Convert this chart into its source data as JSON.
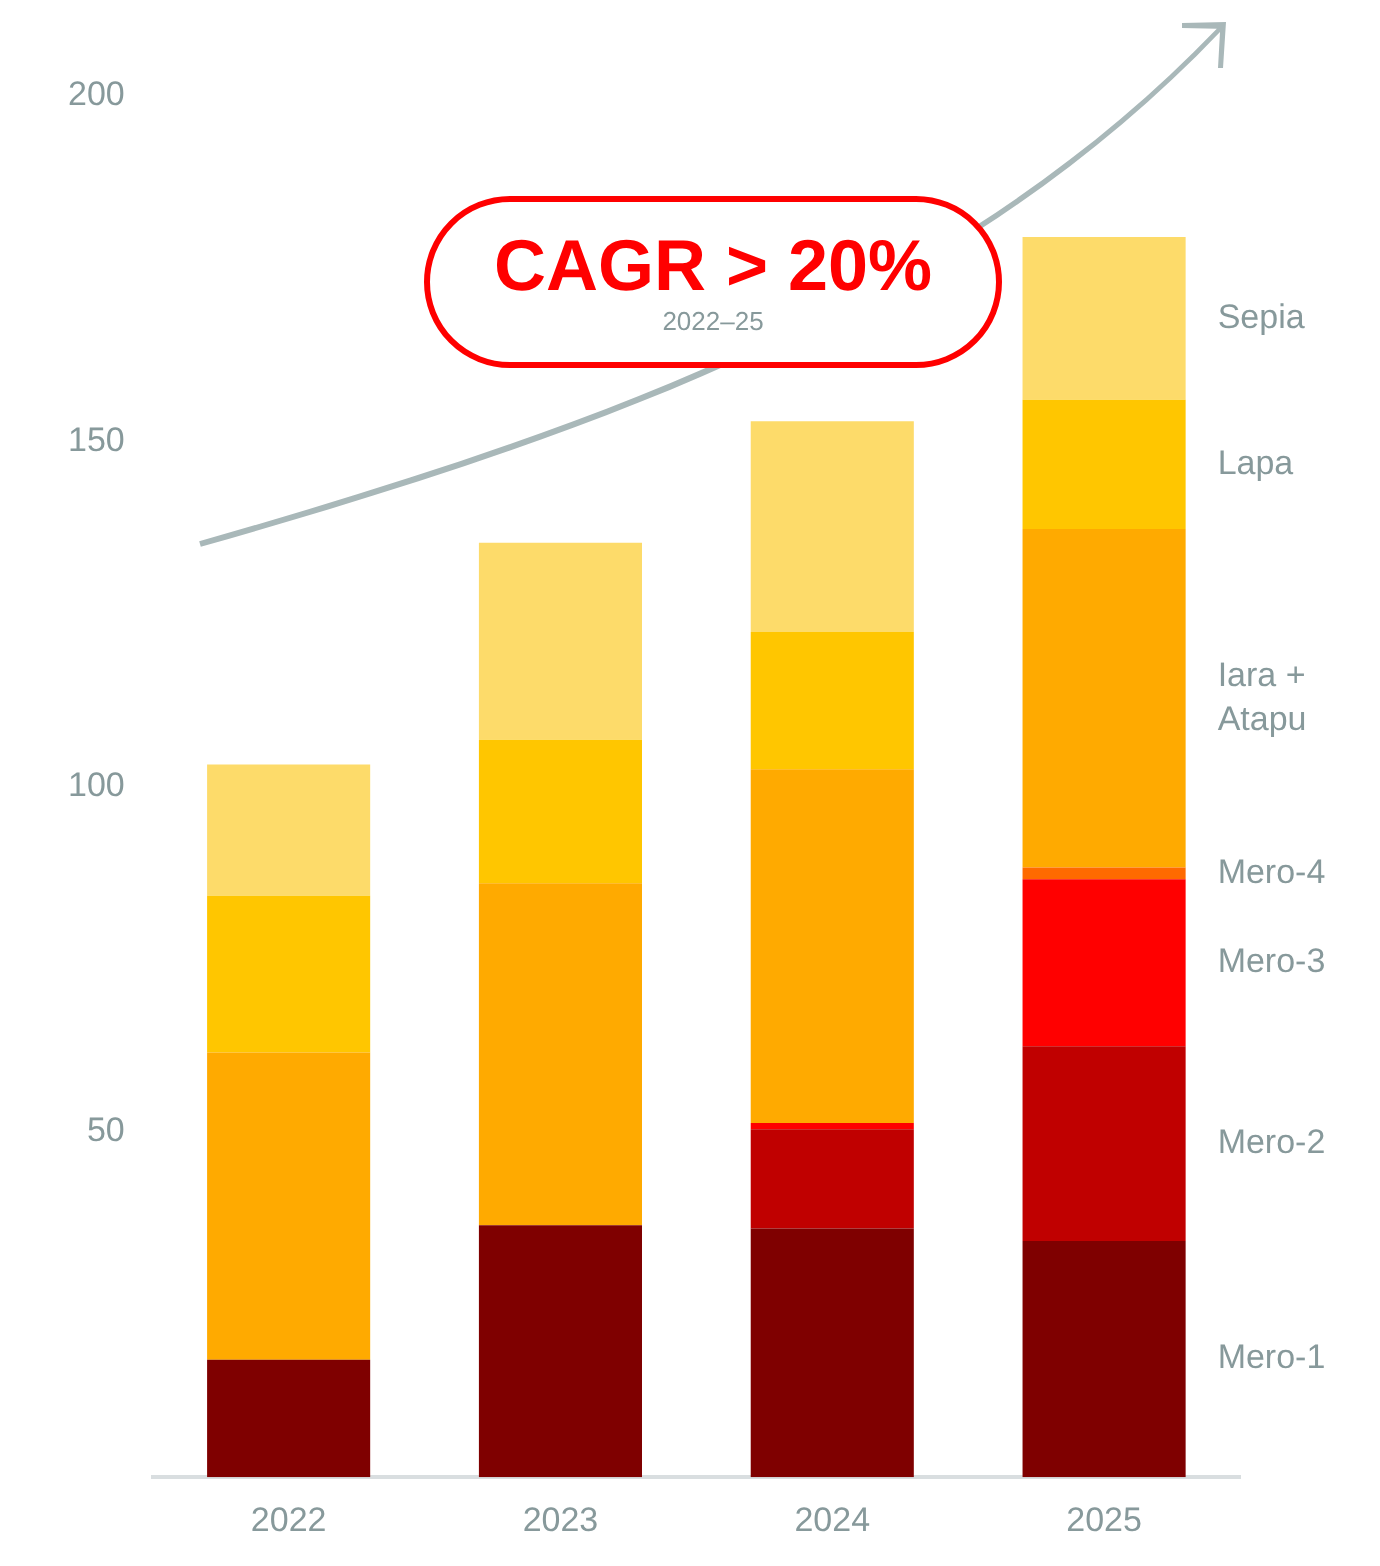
{
  "chart_data": {
    "type": "bar",
    "stacked": true,
    "grid": false,
    "legend": false,
    "categories": [
      "2022",
      "2023",
      "2024",
      "2025"
    ],
    "series": [
      {
        "name": "Mero-1",
        "color": "#7f0000",
        "values": [
          17,
          36.5,
          36,
          34.2
        ]
      },
      {
        "name": "Mero-2",
        "color": "#c00000",
        "values": [
          null,
          null,
          14.4,
          28.2
        ]
      },
      {
        "name": "Mero-3",
        "color": "#ff0000",
        "values": [
          null,
          null,
          0.9,
          24.2
        ]
      },
      {
        "name": "Mero-4",
        "color": "#ff6a00",
        "values": [
          null,
          null,
          null,
          1.7
        ]
      },
      {
        "name": "Iara + Atapu",
        "color": "#ffaa00",
        "values": [
          44.5,
          49.5,
          51.2,
          49
        ]
      },
      {
        "name": "Lapa",
        "color": "#ffc600",
        "values": [
          22.7,
          20.8,
          19.9,
          18.7
        ]
      },
      {
        "name": "Sepia",
        "color": "#fddb6a",
        "values": [
          19,
          28.5,
          30.5,
          23.6
        ]
      }
    ],
    "ylim": [
      0,
      200
    ],
    "yticks": [
      50,
      100,
      150,
      200
    ],
    "annotations": [
      "CAGR > 20%",
      "2022–25"
    ]
  }
}
